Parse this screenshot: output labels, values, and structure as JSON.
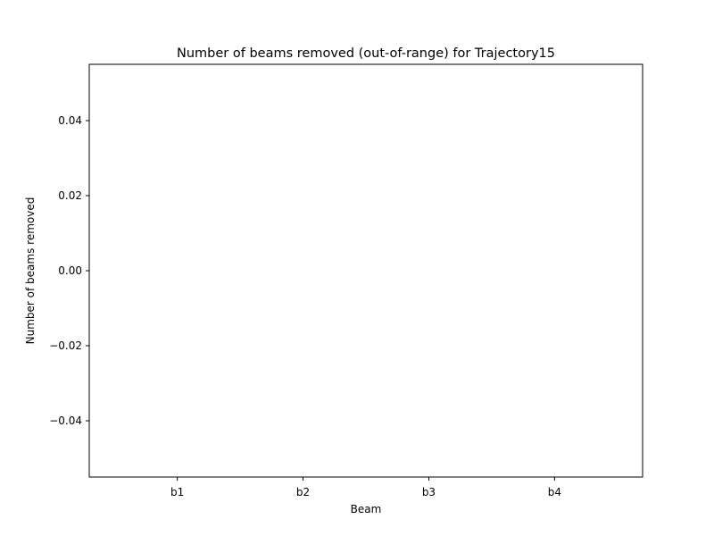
{
  "chart_data": {
    "type": "bar",
    "title": "Number of beams removed (out-of-range) for Trajectory15",
    "xlabel": "Beam",
    "ylabel": "Number of beams removed",
    "categories": [
      "b1",
      "b2",
      "b3",
      "b4"
    ],
    "values": [
      0,
      0,
      0,
      0
    ],
    "ylim": [
      -0.055,
      0.055
    ],
    "yticks": [
      -0.04,
      -0.02,
      0.0,
      0.02,
      0.04
    ],
    "ytick_labels": [
      "−0.04",
      "−0.02",
      "0.00",
      "0.02",
      "0.04"
    ],
    "grid": false,
    "colors": {
      "axes": "#000000",
      "bar": "#1f77b4",
      "background": "#ffffff"
    }
  }
}
